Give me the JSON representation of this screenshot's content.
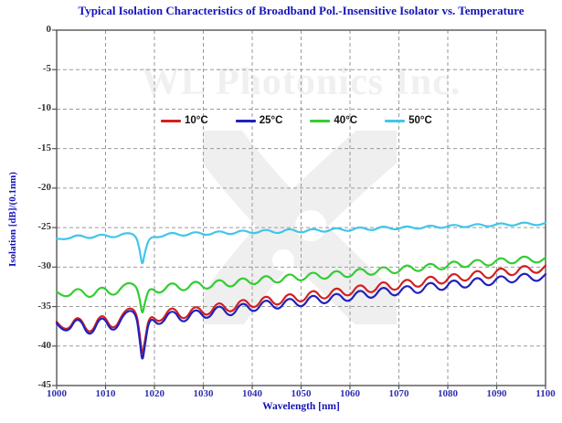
{
  "watermark": {
    "text": "WL Photonics Inc.",
    "logo": "crossed-ribbons-logo"
  },
  "colors": {
    "title": "#1414b8",
    "axis_titles": "#1414b8",
    "x_tick_labels": "#3030b0",
    "y_tick_labels": "#333333",
    "frame": "#555555",
    "grid": "#9a9a9a",
    "watermark": "#f0f0f1"
  },
  "chart_data": {
    "type": "line",
    "title": "Typical Isolation Characteristics of Broadband Pol.-Insensitive Isolator vs. Temperature",
    "xlabel": "Wavelength [nm]",
    "ylabel": "Isolation [dB]/(0.1nm)",
    "xlim": [
      1000,
      1100
    ],
    "ylim": [
      -45,
      0
    ],
    "x_ticks": [
      1000,
      1010,
      1020,
      1030,
      1040,
      1050,
      1060,
      1070,
      1080,
      1090,
      1100
    ],
    "y_ticks": [
      0,
      -5,
      -10,
      -15,
      -20,
      -25,
      -30,
      -35,
      -40,
      -45
    ],
    "grid": "dashed",
    "legend_position": "top-inside",
    "resonance_dip_nm": 1017.5,
    "x": [
      1000,
      1002,
      1004.4,
      1006.8,
      1009.2,
      1011.6,
      1014,
      1016.2,
      1017,
      1017.5,
      1018,
      1019,
      1021.2,
      1023.6,
      1026,
      1028.4,
      1030.8,
      1033.2,
      1035.6,
      1038,
      1040.4,
      1042.8,
      1045.2,
      1047.6,
      1050,
      1052.4,
      1054.8,
      1057.2,
      1059.6,
      1062,
      1064.4,
      1066.8,
      1069.2,
      1071.6,
      1074,
      1076.4,
      1078.8,
      1081.2,
      1083.6,
      1086,
      1088.4,
      1090.8,
      1093.2,
      1095.6,
      1098,
      1100
    ],
    "series": [
      {
        "name": "10°C",
        "color": "#d22020",
        "values": [
          -36.9,
          -38.6,
          -35.7,
          -39.0,
          -35.4,
          -38.4,
          -35.2,
          -35.3,
          -38.5,
          -41.4,
          -39.5,
          -35.8,
          -37.3,
          -34.6,
          -37.1,
          -34.5,
          -36.6,
          -34.0,
          -36.2,
          -33.6,
          -35.6,
          -33.2,
          -35.3,
          -32.9,
          -34.9,
          -32.5,
          -34.5,
          -32.2,
          -34.1,
          -31.8,
          -33.7,
          -31.4,
          -33.4,
          -31.1,
          -33.0,
          -30.7,
          -32.6,
          -30.4,
          -32.2,
          -30.0,
          -31.9,
          -29.7,
          -31.5,
          -29.4,
          -31.1,
          -29.8
        ]
      },
      {
        "name": "25°C",
        "color": "#2121bb",
        "values": [
          -37.1,
          -38.8,
          -35.9,
          -39.3,
          -35.7,
          -38.7,
          -35.5,
          -35.6,
          -39.2,
          -42.2,
          -40.1,
          -36.1,
          -37.7,
          -35.0,
          -37.5,
          -34.9,
          -37.0,
          -34.4,
          -36.7,
          -34.1,
          -36.1,
          -33.7,
          -35.8,
          -33.5,
          -35.5,
          -33.1,
          -35.1,
          -32.9,
          -34.8,
          -32.5,
          -34.4,
          -32.1,
          -34.1,
          -31.9,
          -33.8,
          -31.5,
          -33.4,
          -31.2,
          -33.1,
          -30.9,
          -32.8,
          -30.7,
          -32.4,
          -30.4,
          -32.1,
          -30.9
        ]
      },
      {
        "name": "40°C",
        "color": "#33cc33",
        "values": [
          -33.1,
          -34.2,
          -32.3,
          -34.3,
          -32.1,
          -34.0,
          -31.9,
          -32.2,
          -34.0,
          -36.2,
          -34.6,
          -32.4,
          -33.6,
          -31.6,
          -33.4,
          -31.4,
          -33.2,
          -31.2,
          -32.9,
          -31.0,
          -32.6,
          -30.7,
          -32.4,
          -30.5,
          -32.1,
          -30.3,
          -31.9,
          -30.1,
          -31.7,
          -29.8,
          -31.4,
          -29.6,
          -31.2,
          -29.4,
          -30.9,
          -29.2,
          -30.7,
          -28.9,
          -30.4,
          -28.7,
          -30.2,
          -28.5,
          -29.9,
          -28.3,
          -29.7,
          -28.8
        ]
      },
      {
        "name": "50°C",
        "color": "#41c6e8",
        "values": [
          -26.4,
          -26.6,
          -25.8,
          -26.5,
          -25.7,
          -26.4,
          -25.6,
          -25.9,
          -27.8,
          -30.0,
          -28.2,
          -26.1,
          -26.3,
          -25.5,
          -26.2,
          -25.4,
          -26.1,
          -25.3,
          -26.0,
          -25.2,
          -25.9,
          -25.1,
          -25.9,
          -25.0,
          -25.8,
          -25.0,
          -25.7,
          -24.9,
          -25.6,
          -24.8,
          -25.5,
          -24.7,
          -25.4,
          -24.7,
          -25.3,
          -24.6,
          -25.2,
          -24.5,
          -25.1,
          -24.4,
          -25.0,
          -24.3,
          -24.9,
          -24.2,
          -24.8,
          -24.4
        ]
      }
    ]
  }
}
